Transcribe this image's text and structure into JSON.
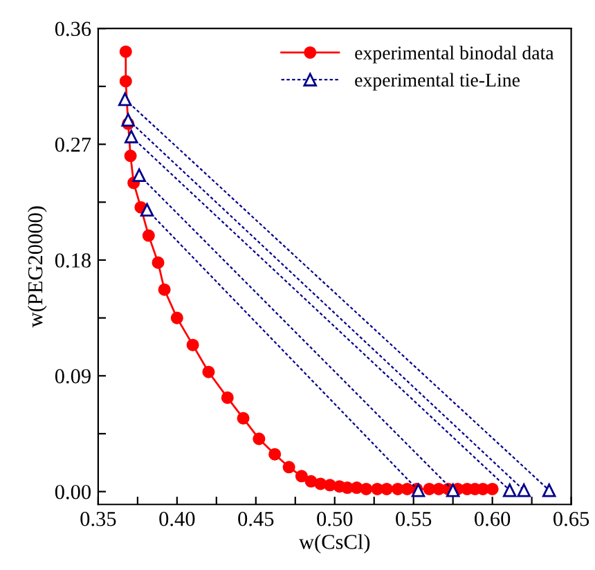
{
  "chart_data": {
    "type": "line",
    "xlabel": "w(CsCl)",
    "ylabel": "w(PEG20000)",
    "xlim": [
      0.35,
      0.65
    ],
    "ylim": [
      -0.01,
      0.36
    ],
    "xticks": [
      0.35,
      {
        "value": 0.375,
        "label": null
      },
      {
        "value": 0.4,
        "label": "0.40"
      },
      {
        "value": 0.425,
        "label": null
      },
      0.45,
      {
        "value": 0.475,
        "label": null
      },
      {
        "value": 0.5,
        "label": "0.50"
      },
      {
        "value": 0.525,
        "label": null
      },
      0.55,
      {
        "value": 0.575,
        "label": null
      },
      {
        "value": 0.6,
        "label": "0.60"
      },
      {
        "value": 0.625,
        "label": null
      },
      0.65
    ],
    "yticks": [
      {
        "value": 0.0,
        "label": "0.00"
      },
      {
        "value": 0.045,
        "label": null
      },
      0.09,
      {
        "value": 0.135,
        "label": null
      },
      0.18,
      {
        "value": 0.225,
        "label": null
      },
      0.27,
      {
        "value": 0.315,
        "label": null
      },
      0.36
    ],
    "legend": "top right",
    "grid": false,
    "series": [
      {
        "name": "experimental binodal data",
        "color": "#ff0000",
        "marker": "circle",
        "line_style": "solid",
        "x": [
          0.3675,
          0.3675,
          0.369,
          0.3705,
          0.3725,
          0.377,
          0.382,
          0.388,
          0.392,
          0.4,
          0.41,
          0.42,
          0.432,
          0.442,
          0.452,
          0.462,
          0.471,
          0.479,
          0.485,
          0.491,
          0.497,
          0.503,
          0.508,
          0.514,
          0.52,
          0.527,
          0.533,
          0.54,
          0.546,
          0.552,
          0.56,
          0.566,
          0.572,
          0.578,
          0.584,
          0.589,
          0.594,
          0.6
        ],
        "values": [
          0.342,
          0.319,
          0.286,
          0.261,
          0.24,
          0.221,
          0.199,
          0.178,
          0.157,
          0.135,
          0.114,
          0.093,
          0.073,
          0.057,
          0.041,
          0.029,
          0.019,
          0.012,
          0.008,
          0.006,
          0.005,
          0.004,
          0.003,
          0.003,
          0.002,
          0.002,
          0.002,
          0.002,
          0.002,
          0.002,
          0.002,
          0.002,
          0.002,
          0.002,
          0.002,
          0.002,
          0.002,
          0.002
        ]
      },
      {
        "name": "experimental tie-Line",
        "color": "#00008b",
        "marker": "triangle",
        "line_style": "dashed",
        "x": [
          0.367,
          0.636
        ],
        "values": [
          0.305,
          0.001
        ]
      },
      {
        "color": "#00008b",
        "marker": "triangle",
        "line_style": "dashed",
        "x": [
          0.369,
          0.62
        ],
        "values": [
          0.289,
          0.001
        ]
      },
      {
        "color": "#00008b",
        "marker": "triangle",
        "line_style": "dashed",
        "x": [
          0.371,
          0.611
        ],
        "values": [
          0.276,
          0.001
        ]
      },
      {
        "color": "#00008b",
        "marker": "triangle",
        "line_style": "dashed",
        "x": [
          0.376,
          0.575
        ],
        "values": [
          0.246,
          0.001
        ]
      },
      {
        "color": "#00008b",
        "marker": "triangle",
        "line_style": "dashed",
        "x": [
          0.381,
          0.553
        ],
        "values": [
          0.219,
          0.001
        ]
      }
    ]
  }
}
